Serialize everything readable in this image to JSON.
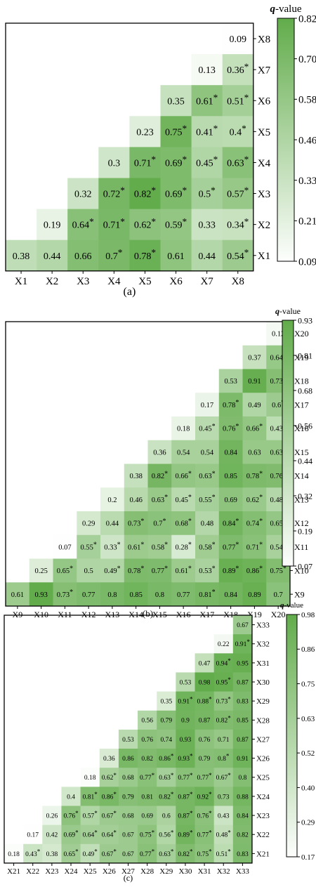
{
  "figure": {
    "panel_labels": [
      "(a)",
      "(b)",
      "(c)"
    ],
    "colorbar_title_q": "q",
    "colorbar_title_rest": "-value",
    "significance_marker": "*",
    "color_low": "#fdfefd",
    "color_high": "#62ac4b"
  },
  "chart_data": [
    {
      "type": "heatmap",
      "panel_label": "(a)",
      "colorbar_label": "q-value",
      "colorbar_ticks": [
        "0.82",
        "0.70",
        "0.58",
        "0.46",
        "0.33",
        "0.21",
        "0.09"
      ],
      "vmin": 0.09,
      "vmax": 0.82,
      "x_labels": [
        "X1",
        "X2",
        "X3",
        "X4",
        "X5",
        "X6",
        "X7",
        "X8"
      ],
      "y_labels": [
        "X8",
        "X7",
        "X6",
        "X5",
        "X4",
        "X3",
        "X2",
        "X1"
      ],
      "rows": [
        [
          null,
          null,
          null,
          null,
          null,
          null,
          null,
          "0.09"
        ],
        [
          null,
          null,
          null,
          null,
          null,
          null,
          "0.13",
          "0.36*"
        ],
        [
          null,
          null,
          null,
          null,
          null,
          "0.35",
          "0.61*",
          "0.51*"
        ],
        [
          null,
          null,
          null,
          null,
          "0.23",
          "0.75*",
          "0.41*",
          "0.4*"
        ],
        [
          null,
          null,
          null,
          "0.3",
          "0.71*",
          "0.69*",
          "0.45*",
          "0.63*"
        ],
        [
          null,
          null,
          "0.32",
          "0.72*",
          "0.82*",
          "0.69*",
          "0.5*",
          "0.57*"
        ],
        [
          null,
          "0.19",
          "0.64*",
          "0.71*",
          "0.62*",
          "0.59*",
          "0.33",
          "0.34*"
        ],
        [
          "0.38",
          "0.44",
          "0.66",
          "0.7*",
          "0.78*",
          "0.61",
          "0.44",
          "0.54*"
        ]
      ]
    },
    {
      "type": "heatmap",
      "panel_label": "(b)",
      "colorbar_label": "q-value",
      "colorbar_ticks": [
        "0.93",
        "0.81",
        "0.68",
        "0.56",
        "0.44",
        "0.32",
        "0.19",
        "0.07"
      ],
      "vmin": 0.07,
      "vmax": 0.93,
      "x_labels": [
        "X9",
        "X10",
        "X11",
        "X12",
        "X13",
        "X14",
        "X15",
        "X16",
        "X17",
        "X18",
        "X19",
        "X20"
      ],
      "y_labels": [
        "X20",
        "X19",
        "X18",
        "X17",
        "X16",
        "X15",
        "X14",
        "X13",
        "X12",
        "X11",
        "X10",
        "X9"
      ],
      "rows": [
        [
          null,
          null,
          null,
          null,
          null,
          null,
          null,
          null,
          null,
          null,
          null,
          "0.12"
        ],
        [
          null,
          null,
          null,
          null,
          null,
          null,
          null,
          null,
          null,
          null,
          "0.37",
          "0.64*"
        ],
        [
          null,
          null,
          null,
          null,
          null,
          null,
          null,
          null,
          null,
          "0.53",
          "0.91",
          "0.73*"
        ],
        [
          null,
          null,
          null,
          null,
          null,
          null,
          null,
          null,
          "0.17",
          "0.78*",
          "0.49",
          "0.6*"
        ],
        [
          null,
          null,
          null,
          null,
          null,
          null,
          null,
          "0.18",
          "0.45*",
          "0.76*",
          "0.66*",
          "0.43*"
        ],
        [
          null,
          null,
          null,
          null,
          null,
          null,
          "0.36",
          "0.54",
          "0.54",
          "0.84",
          "0.63",
          "0.63*"
        ],
        [
          null,
          null,
          null,
          null,
          null,
          "0.38",
          "0.82*",
          "0.66*",
          "0.63*",
          "0.85",
          "0.78*",
          "0.76*"
        ],
        [
          null,
          null,
          null,
          null,
          "0.2",
          "0.46",
          "0.63*",
          "0.45*",
          "0.55*",
          "0.69",
          "0.62*",
          "0.48*"
        ],
        [
          null,
          null,
          null,
          "0.29",
          "0.44",
          "0.73*",
          "0.7*",
          "0.68*",
          "0.48",
          "0.84*",
          "0.74*",
          "0.65*"
        ],
        [
          null,
          null,
          "0.07",
          "0.55*",
          "0.33*",
          "0.61*",
          "0.58*",
          "0.28*",
          "0.58*",
          "0.77*",
          "0.71*",
          "0.54*"
        ],
        [
          null,
          "0.25",
          "0.65*",
          "0.5",
          "0.49*",
          "0.78*",
          "0.77*",
          "0.61*",
          "0.53*",
          "0.89*",
          "0.86*",
          "0.75*"
        ],
        [
          "0.61",
          "0.93",
          "0.73*",
          "0.77",
          "0.8",
          "0.85",
          "0.8",
          "0.77",
          "0.81*",
          "0.84",
          "0.89",
          "0.7"
        ]
      ]
    },
    {
      "type": "heatmap",
      "panel_label": "(c)",
      "colorbar_label": "q-value",
      "colorbar_ticks": [
        "0.98",
        "0.86",
        "0.75",
        "0.63",
        "0.52",
        "0.40",
        "0.29",
        "0.17"
      ],
      "vmin": 0.17,
      "vmax": 0.98,
      "x_labels": [
        "X21",
        "X22",
        "X23",
        "X24",
        "X25",
        "X26",
        "X27",
        "X28",
        "X29",
        "X30",
        "X31",
        "X32",
        "X33"
      ],
      "y_labels": [
        "X33",
        "X32",
        "X31",
        "X30",
        "X29",
        "X28",
        "X27",
        "X26",
        "X25",
        "X24",
        "X23",
        "X22",
        "X21"
      ],
      "rows": [
        [
          null,
          null,
          null,
          null,
          null,
          null,
          null,
          null,
          null,
          null,
          null,
          null,
          "0.67"
        ],
        [
          null,
          null,
          null,
          null,
          null,
          null,
          null,
          null,
          null,
          null,
          null,
          "0.22",
          "0.91*"
        ],
        [
          null,
          null,
          null,
          null,
          null,
          null,
          null,
          null,
          null,
          null,
          "0.47",
          "0.94*",
          "0.95"
        ],
        [
          null,
          null,
          null,
          null,
          null,
          null,
          null,
          null,
          null,
          "0.53",
          "0.98",
          "0.95*",
          "0.87"
        ],
        [
          null,
          null,
          null,
          null,
          null,
          null,
          null,
          null,
          "0.35",
          "0.91*",
          "0.88*",
          "0.73*",
          "0.83"
        ],
        [
          null,
          null,
          null,
          null,
          null,
          null,
          null,
          "0.56",
          "0.79",
          "0.9",
          "0.87",
          "0.82*",
          "0.85"
        ],
        [
          null,
          null,
          null,
          null,
          null,
          null,
          "0.53",
          "0.76",
          "0.74",
          "0.93",
          "0.76",
          "0.71",
          "0.87"
        ],
        [
          null,
          null,
          null,
          null,
          null,
          "0.36",
          "0.86",
          "0.82",
          "0.86*",
          "0.93*",
          "0.79",
          "0.8*",
          "0.91"
        ],
        [
          null,
          null,
          null,
          null,
          "0.18",
          "0.62*",
          "0.68",
          "0.77*",
          "0.63*",
          "0.77*",
          "0.77*",
          "0.67*",
          "0.8"
        ],
        [
          null,
          null,
          null,
          "0.4",
          "0.81*",
          "0.86*",
          "0.79",
          "0.81",
          "0.82*",
          "0.87*",
          "0.92*",
          "0.73",
          "0.88"
        ],
        [
          null,
          null,
          "0.26",
          "0.76*",
          "0.57*",
          "0.67*",
          "0.68",
          "0.69",
          "0.6",
          "0.87*",
          "0.76*",
          "0.43",
          "0.84"
        ],
        [
          null,
          "0.17",
          "0.42",
          "0.69*",
          "0.64*",
          "0.64*",
          "0.67",
          "0.75*",
          "0.56*",
          "0.89*",
          "0.77*",
          "0.48*",
          "0.82"
        ],
        [
          "0.18",
          "0.43*",
          "0.38",
          "0.65*",
          "0.49*",
          "0.67*",
          "0.67",
          "0.77*",
          "0.63*",
          "0.82*",
          "0.75*",
          "0.51*",
          "0.83"
        ]
      ]
    }
  ]
}
